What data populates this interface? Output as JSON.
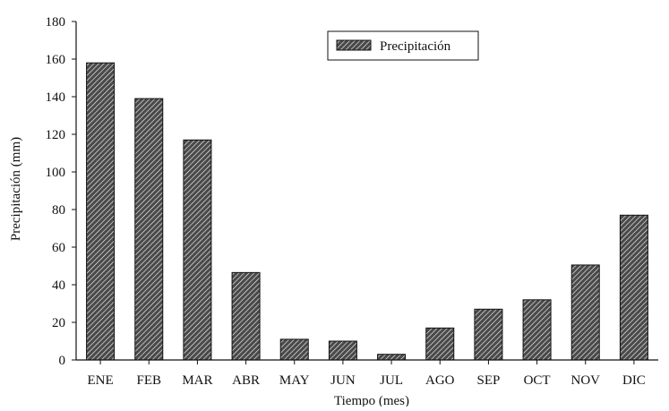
{
  "chart_data": {
    "type": "bar",
    "title": "",
    "xlabel": "Tiempo (mes)",
    "ylabel": "Precipitación (mm)",
    "categories": [
      "ENE",
      "FEB",
      "MAR",
      "ABR",
      "MAY",
      "JUN",
      "JUL",
      "AGO",
      "SEP",
      "OCT",
      "NOV",
      "DIC"
    ],
    "series": [
      {
        "name": "Precipitación",
        "values": [
          158,
          139,
          117,
          46.5,
          11,
          10,
          3,
          17,
          27,
          32,
          50.5,
          77
        ]
      }
    ],
    "yticks": [
      0,
      20,
      40,
      60,
      80,
      100,
      120,
      140,
      160,
      180
    ],
    "ylim": [
      0,
      180
    ],
    "grid": false,
    "legend": {
      "position": "top-center",
      "entries": [
        "Precipitación"
      ]
    },
    "colors": {
      "bar_fill": "#4a4a4a",
      "hatch": "#ffffff",
      "axis": "#111111"
    }
  }
}
